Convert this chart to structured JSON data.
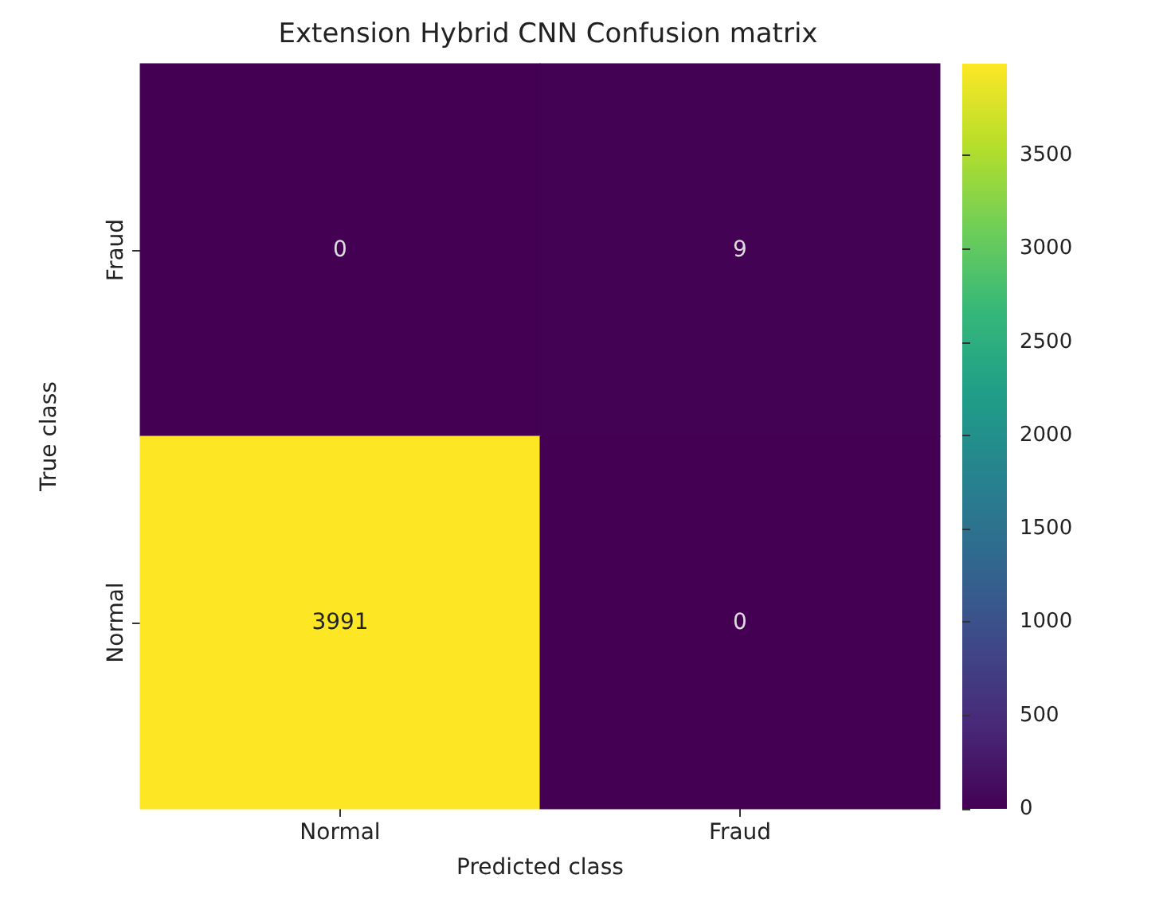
{
  "chart_data": {
    "type": "heatmap",
    "title": "Extension Hybrid CNN Confusion matrix",
    "xlabel": "Predicted class",
    "ylabel": "True class",
    "categories": [
      "Normal",
      "Fraud"
    ],
    "y_categories": [
      "Fraud",
      "Normal"
    ],
    "cells": [
      [
        0,
        9
      ],
      [
        3991,
        0
      ]
    ],
    "clim": [
      0,
      3991
    ],
    "cticks": [
      0,
      500,
      1000,
      1500,
      2000,
      2500,
      3000,
      3500
    ],
    "data_labels": true
  }
}
